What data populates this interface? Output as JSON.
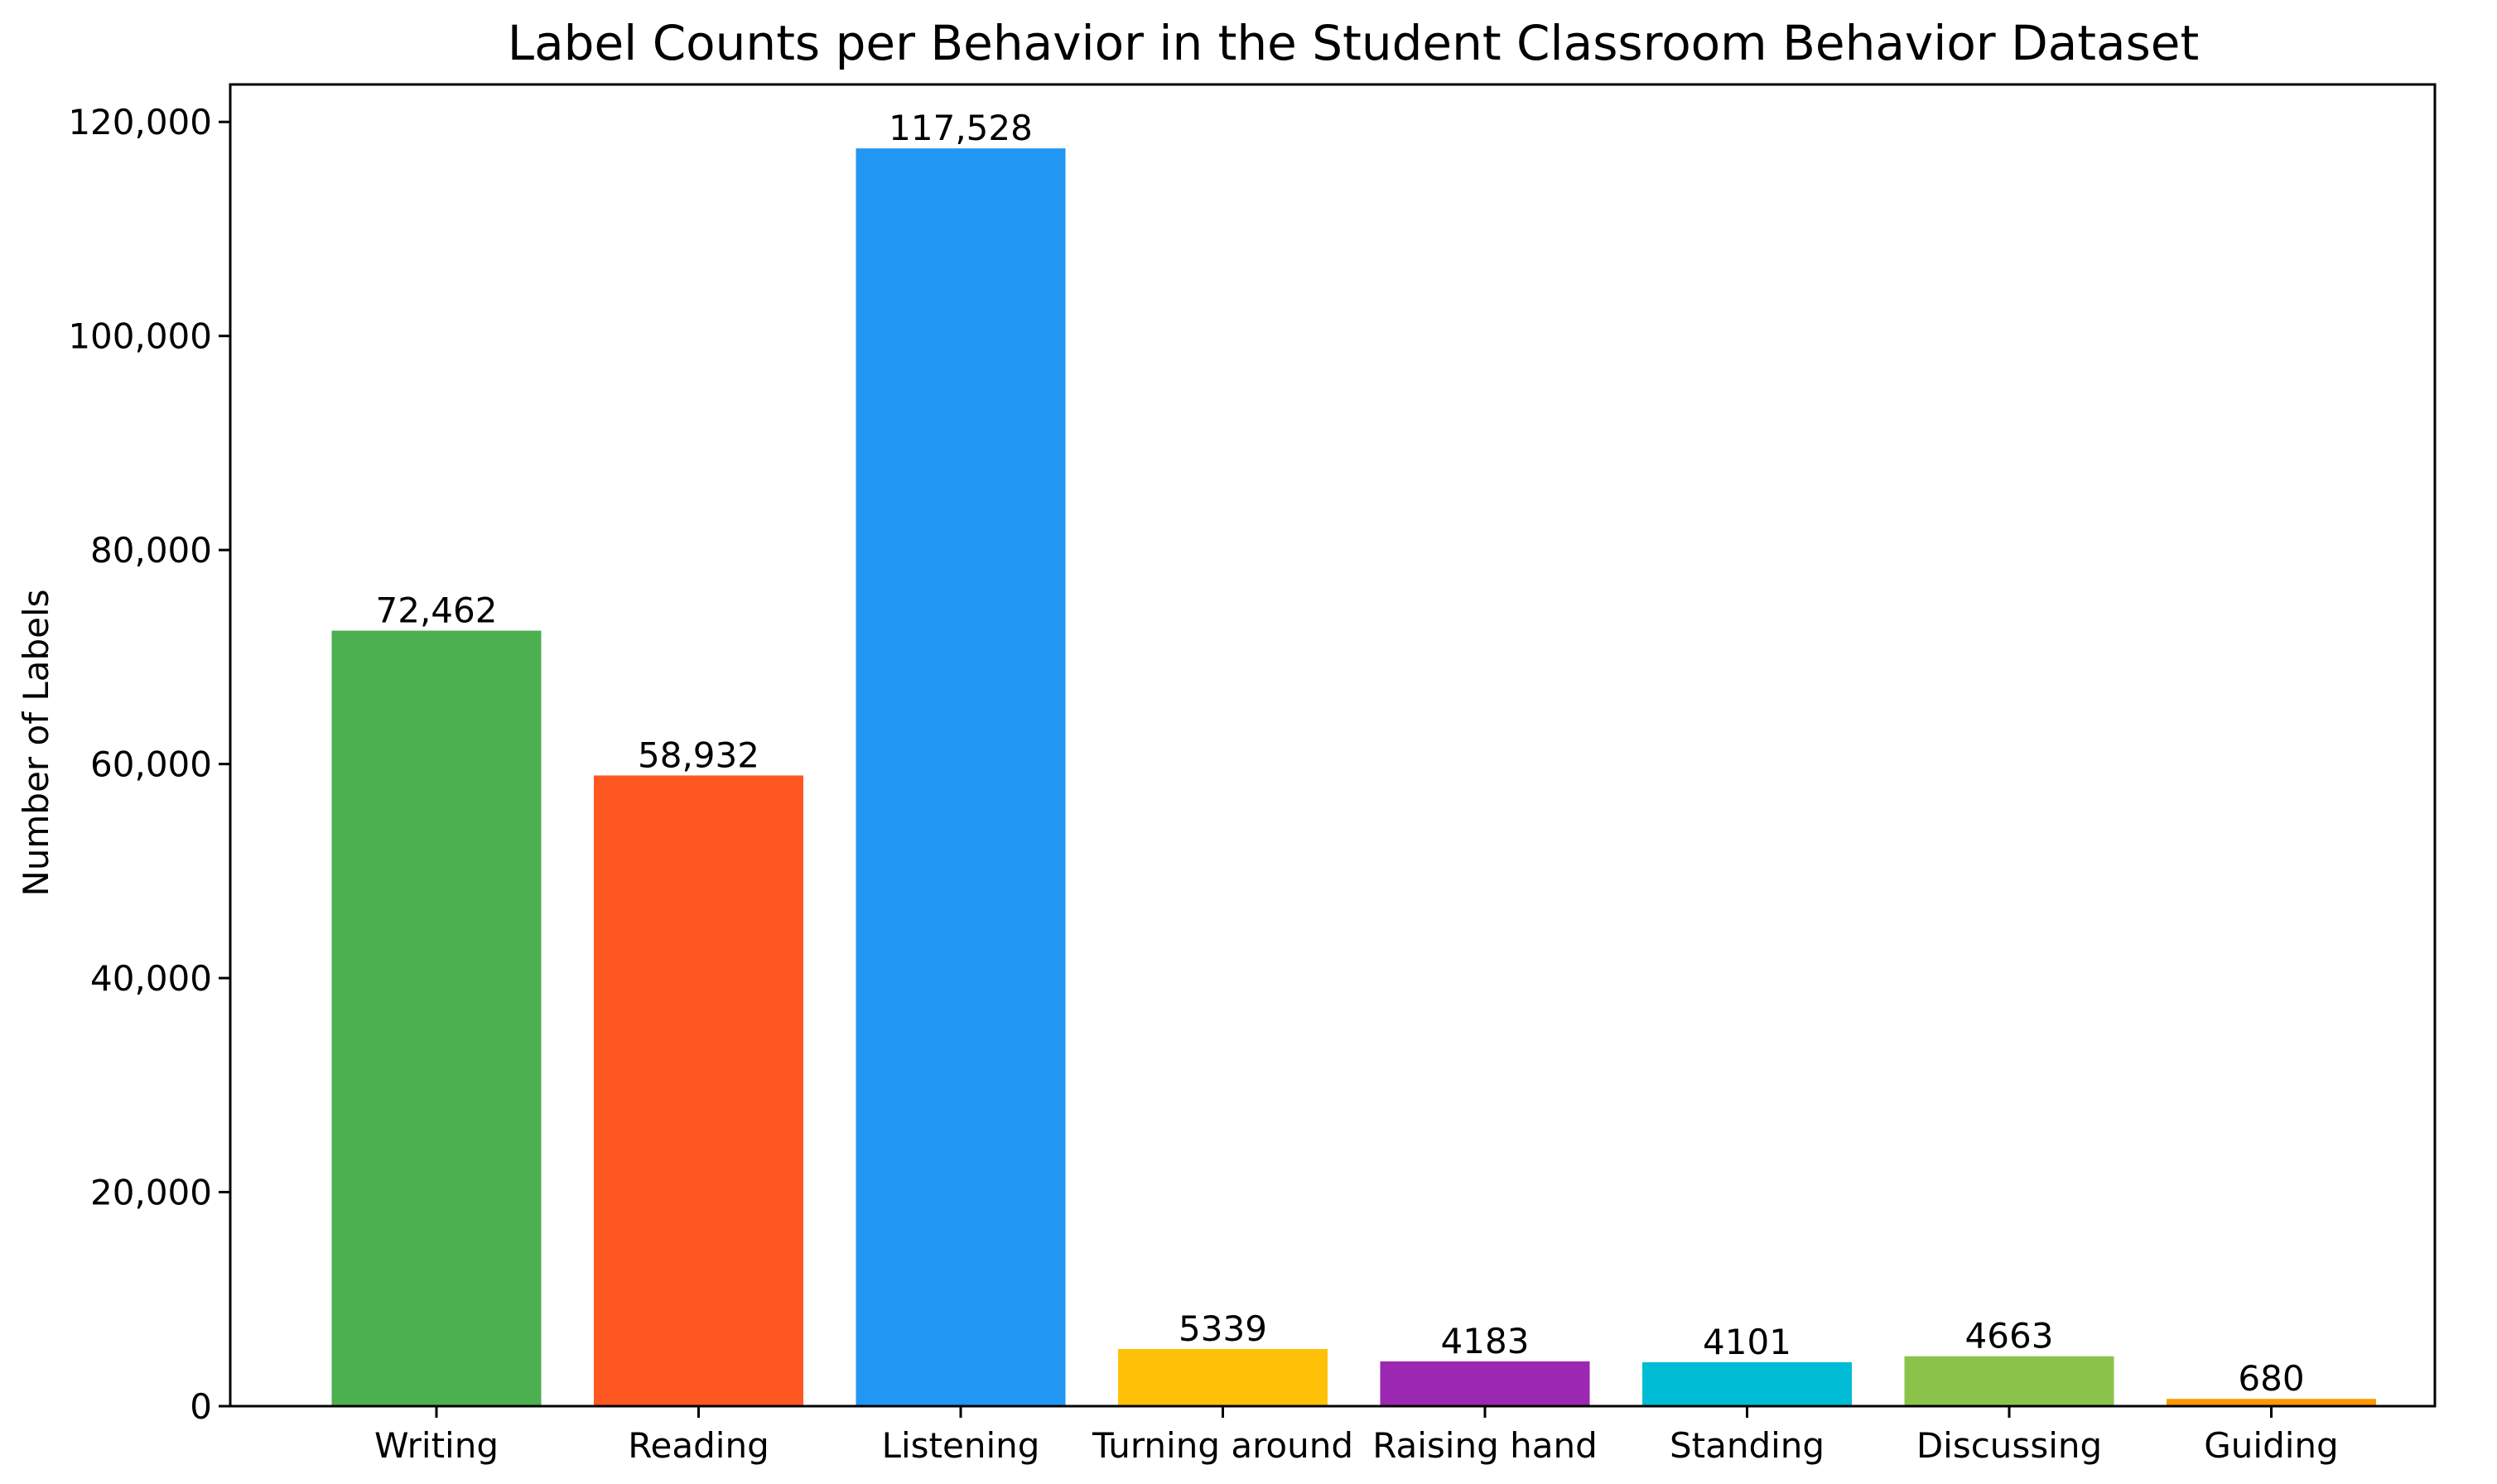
{
  "chart_data": {
    "type": "bar",
    "title": "Label Counts per Behavior in the Student Classroom Behavior Dataset",
    "xlabel": "",
    "ylabel": "Number of Labels",
    "categories": [
      "Writing",
      "Reading",
      "Listening",
      "Turning around",
      "Raising hand",
      "Standing",
      "Discussing",
      "Guiding"
    ],
    "values": [
      72462,
      58932,
      117528,
      5339,
      4183,
      4101,
      4663,
      680
    ],
    "value_labels": [
      "72,462",
      "58,932",
      "117,528",
      "5339",
      "4183",
      "4101",
      "4663",
      "680"
    ],
    "colors": [
      "#4caf50",
      "#ff5722",
      "#2196f3",
      "#ffc107",
      "#9c27b0",
      "#00bcd4",
      "#8bc34a",
      "#ff9800"
    ],
    "ylim": [
      0,
      123500
    ],
    "yticks": [
      0,
      20000,
      40000,
      60000,
      80000,
      100000,
      120000
    ],
    "ytick_labels": [
      "0",
      "20,000",
      "40,000",
      "60,000",
      "80,000",
      "100,000",
      "120,000"
    ],
    "grid": false,
    "legend": "none"
  }
}
